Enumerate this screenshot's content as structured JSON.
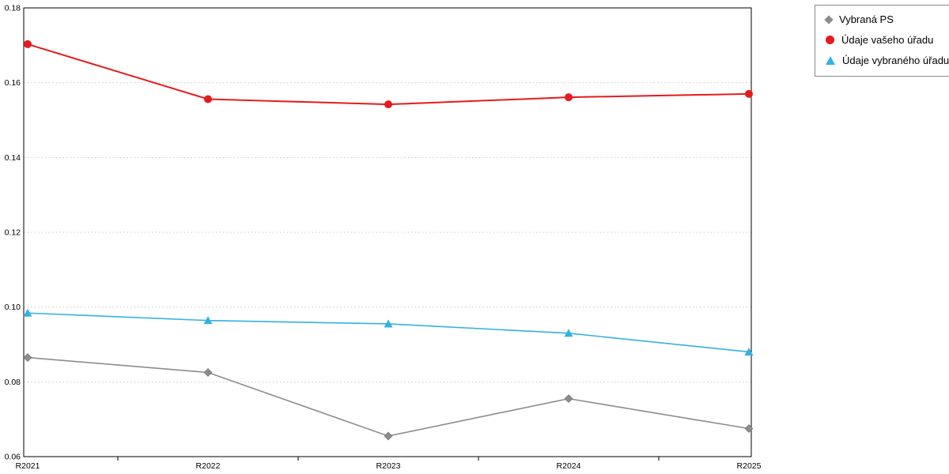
{
  "chart_data": {
    "type": "line",
    "title": "",
    "xlabel": "",
    "ylabel": "",
    "categories": [
      "R2021",
      "R2022",
      "R2023",
      "R2024",
      "R2025"
    ],
    "series": [
      {
        "name": "Vybraná PS",
        "marker": "diamond",
        "color": "#8c8c8c",
        "values": [
          0.0865,
          0.0825,
          0.0655,
          0.0755,
          0.0675
        ]
      },
      {
        "name": "Údaje vašeho úřadu",
        "marker": "circle",
        "color": "#e61a1d",
        "values": [
          0.1703,
          0.1556,
          0.1542,
          0.1561,
          0.157
        ]
      },
      {
        "name": "Údaje vybraného úřadu",
        "marker": "triangle",
        "color": "#33b1e4",
        "values": [
          0.0984,
          0.0964,
          0.0955,
          0.093,
          0.088
        ]
      }
    ],
    "ylim": [
      0.06,
      0.18
    ],
    "ytick_step": 0.02,
    "ytick_labels": [
      "0.06",
      "0.08",
      "0.10",
      "0.12",
      "0.14",
      "0.16",
      "0.18"
    ],
    "grid": "dotted-horizontal",
    "legend_position": "top-right-outside"
  }
}
